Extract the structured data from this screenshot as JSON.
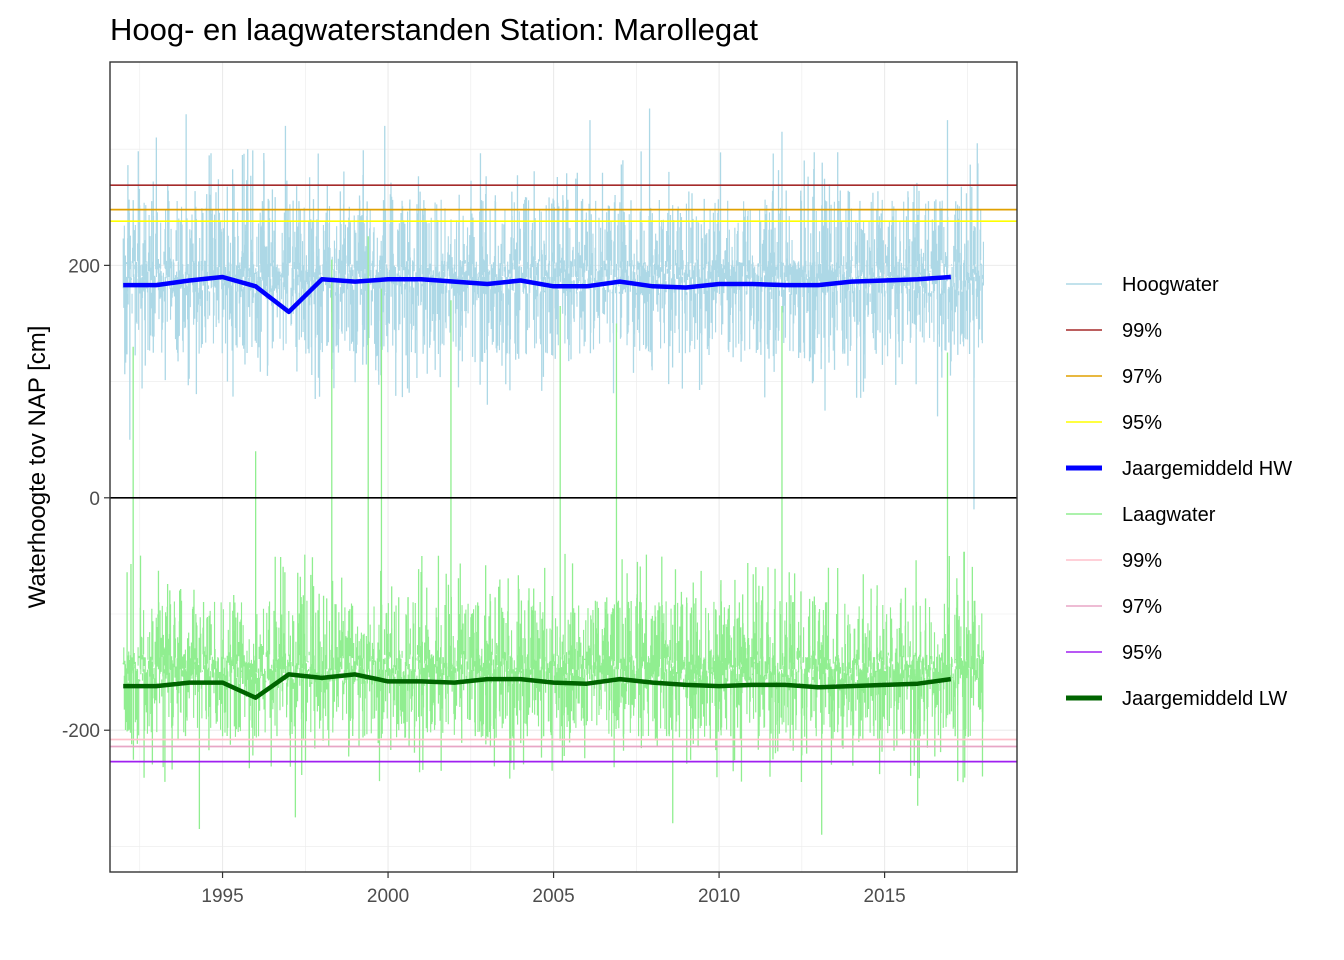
{
  "chart_data": {
    "type": "line",
    "title": "Hoog- en laagwaterstanden Station: Marollegat",
    "xlabel": "",
    "ylabel": "Waterhoogte tov NAP [cm]",
    "xlim": [
      1991.6,
      2019.0
    ],
    "ylim": [
      -322,
      375
    ],
    "x_ticks": [
      1995,
      2000,
      2005,
      2010,
      2015
    ],
    "y_ticks": [
      -200,
      0,
      200
    ],
    "zero_line": 0,
    "grid": true,
    "legend_position": "right",
    "reference_lines": [
      {
        "name": "99%",
        "group": "hw",
        "value": 269,
        "color": "#a52a2a"
      },
      {
        "name": "97%",
        "group": "hw",
        "value": 248,
        "color": "#e0a000"
      },
      {
        "name": "95%",
        "group": "hw",
        "value": 238,
        "color": "#ffff00"
      },
      {
        "name": "99%",
        "group": "lw",
        "value": -208,
        "color": "#ffc0cb"
      },
      {
        "name": "97%",
        "group": "lw",
        "value": -214,
        "color": "#e8a6c6"
      },
      {
        "name": "95%",
        "group": "lw",
        "value": -227,
        "color": "#a020f0"
      }
    ],
    "series": [
      {
        "name": "Hoogwater",
        "color": "#add8e6",
        "kind": "raw",
        "x_range": [
          1992.0,
          2018.0
        ],
        "typical_band": [
          125,
          255
        ],
        "extremes": [
          {
            "x": 1993.0,
            "y": 310
          },
          {
            "x": 1993.9,
            "y": 330
          },
          {
            "x": 1995.6,
            "y": 295
          },
          {
            "x": 1996.9,
            "y": 320
          },
          {
            "x": 1999.9,
            "y": 320
          },
          {
            "x": 2006.1,
            "y": 325
          },
          {
            "x": 2007.9,
            "y": 335
          },
          {
            "x": 2011.9,
            "y": 315
          },
          {
            "x": 2016.9,
            "y": 325
          },
          {
            "x": 2017.8,
            "y": 305
          },
          {
            "x": 1992.2,
            "y": 50
          },
          {
            "x": 1997.8,
            "y": 85
          },
          {
            "x": 2003.0,
            "y": 80
          },
          {
            "x": 2013.2,
            "y": 75
          },
          {
            "x": 2016.6,
            "y": 70
          },
          {
            "x": 2017.7,
            "y": -10
          }
        ]
      },
      {
        "name": "Jaargemiddeld HW",
        "color": "#0000ff",
        "kind": "mean",
        "x": [
          1992,
          1993,
          1994,
          1995,
          1996,
          1997,
          1998,
          1999,
          2000,
          2001,
          2002,
          2003,
          2004,
          2005,
          2006,
          2007,
          2008,
          2009,
          2010,
          2011,
          2012,
          2013,
          2014,
          2015,
          2016,
          2017
        ],
        "values": [
          183,
          183,
          187,
          190,
          182,
          160,
          188,
          186,
          188,
          188,
          186,
          184,
          187,
          182,
          182,
          186,
          182,
          181,
          184,
          184,
          183,
          183,
          186,
          187,
          188,
          190
        ]
      },
      {
        "name": "Laagwater",
        "color": "#90ee90",
        "kind": "raw",
        "x_range": [
          1992.0,
          2018.0
        ],
        "typical_band": [
          -205,
          -90
        ],
        "extremes": [
          {
            "x": 1992.3,
            "y": 130
          },
          {
            "x": 1996.0,
            "y": 40
          },
          {
            "x": 1998.3,
            "y": 205
          },
          {
            "x": 1999.4,
            "y": 225
          },
          {
            "x": 1999.8,
            "y": 180
          },
          {
            "x": 2001.9,
            "y": 170
          },
          {
            "x": 2005.2,
            "y": 165
          },
          {
            "x": 2006.9,
            "y": 150
          },
          {
            "x": 2011.9,
            "y": 165
          },
          {
            "x": 2016.9,
            "y": 125
          },
          {
            "x": 1994.3,
            "y": -285
          },
          {
            "x": 1997.2,
            "y": -275
          },
          {
            "x": 2008.6,
            "y": -280
          },
          {
            "x": 2013.1,
            "y": -290
          },
          {
            "x": 2016.0,
            "y": -265
          }
        ]
      },
      {
        "name": "Jaargemiddeld LW",
        "color": "#006400",
        "kind": "mean",
        "x": [
          1992,
          1993,
          1994,
          1995,
          1996,
          1997,
          1998,
          1999,
          2000,
          2001,
          2002,
          2003,
          2004,
          2005,
          2006,
          2007,
          2008,
          2009,
          2010,
          2011,
          2012,
          2013,
          2014,
          2015,
          2016,
          2017
        ],
        "values": [
          -162,
          -162,
          -159,
          -159,
          -172,
          -152,
          -155,
          -152,
          -158,
          -158,
          -159,
          -156,
          -156,
          -159,
          -160,
          -156,
          -159,
          -161,
          -162,
          -161,
          -161,
          -163,
          -162,
          -161,
          -160,
          -156
        ]
      }
    ],
    "legend": [
      {
        "label": "Hoogwater",
        "color": "#add8e6",
        "weight": "thin"
      },
      {
        "label": "99%",
        "color": "#a52a2a",
        "weight": "thin"
      },
      {
        "label": "97%",
        "color": "#e0a000",
        "weight": "thin"
      },
      {
        "label": "95%",
        "color": "#ffff00",
        "weight": "thin"
      },
      {
        "label": "Jaargemiddeld HW",
        "color": "#0000ff",
        "weight": "thick"
      },
      {
        "label": "Laagwater",
        "color": "#90ee90",
        "weight": "thin"
      },
      {
        "label": "99%",
        "color": "#ffc0cb",
        "weight": "thin"
      },
      {
        "label": "97%",
        "color": "#e8a6c6",
        "weight": "thin"
      },
      {
        "label": "95%",
        "color": "#a020f0",
        "weight": "thin"
      },
      {
        "label": "Jaargemiddeld LW",
        "color": "#006400",
        "weight": "thick"
      }
    ]
  }
}
